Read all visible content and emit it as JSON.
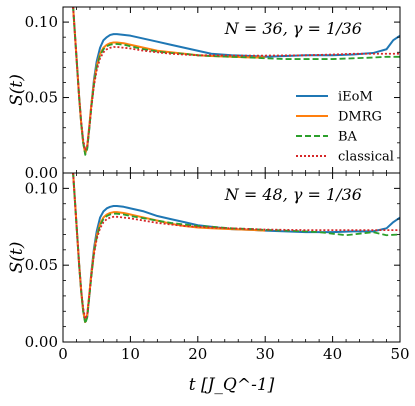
{
  "chart_data": [
    {
      "type": "line",
      "annotation": "N = 36, γ = 1/36",
      "xlabel": "",
      "ylabel": "S(t)",
      "xlim": [
        0,
        50
      ],
      "ylim": [
        0.0,
        0.11
      ],
      "x_ticks": [
        0,
        10,
        20,
        30,
        40,
        50
      ],
      "y_ticks": [
        "0.00",
        "0.05",
        "0.10"
      ],
      "y_tick_values": [
        0.0,
        0.05,
        0.1
      ],
      "legend": "center-right",
      "series": [
        {
          "name": "iEoM",
          "color": "#1f77b4",
          "style": "solid",
          "x": [
            1.5,
            1.8,
            2.1,
            2.4,
            2.7,
            3.0,
            3.3,
            3.6,
            3.9,
            4.2,
            4.6,
            5.0,
            5.5,
            6.0,
            6.5,
            7.0,
            7.5,
            8.0,
            9,
            10,
            12,
            14,
            16,
            18,
            20,
            22,
            25,
            28,
            30,
            33,
            36,
            40,
            43,
            46,
            48,
            49,
            50
          ],
          "y": [
            0.11,
            0.09,
            0.07,
            0.05,
            0.033,
            0.02,
            0.013,
            0.017,
            0.03,
            0.045,
            0.062,
            0.074,
            0.083,
            0.088,
            0.09,
            0.0915,
            0.092,
            0.092,
            0.0915,
            0.091,
            0.089,
            0.087,
            0.085,
            0.083,
            0.081,
            0.079,
            0.078,
            0.0775,
            0.077,
            0.0775,
            0.078,
            0.078,
            0.0785,
            0.0795,
            0.082,
            0.088,
            0.091
          ]
        },
        {
          "name": "DMRG",
          "color": "#ff7f0e",
          "style": "solid",
          "x": [
            1.5,
            1.8,
            2.1,
            2.4,
            2.7,
            3.0,
            3.3,
            3.6,
            3.9,
            4.2,
            4.6,
            5.0,
            5.5,
            6.0,
            6.5,
            7.0,
            7.5,
            8.0,
            9,
            10,
            12,
            14,
            16,
            18,
            20,
            22,
            25,
            28,
            30
          ],
          "y": [
            0.11,
            0.09,
            0.07,
            0.05,
            0.033,
            0.02,
            0.013,
            0.018,
            0.031,
            0.045,
            0.06,
            0.071,
            0.079,
            0.083,
            0.085,
            0.086,
            0.0865,
            0.0865,
            0.086,
            0.085,
            0.083,
            0.081,
            0.08,
            0.079,
            0.078,
            0.0775,
            0.077,
            0.0765,
            0.0765
          ]
        },
        {
          "name": "BA",
          "color": "#2ca02c",
          "style": "dashed",
          "x": [
            1.5,
            1.8,
            2.1,
            2.4,
            2.7,
            3.0,
            3.3,
            3.6,
            3.9,
            4.2,
            4.6,
            5.0,
            5.5,
            6.0,
            6.5,
            7.0,
            7.5,
            8.0,
            9,
            10,
            12,
            14,
            16,
            18,
            20,
            22,
            25,
            28,
            30,
            33,
            36,
            40,
            43,
            46,
            48,
            50
          ],
          "y": [
            0.11,
            0.09,
            0.07,
            0.05,
            0.033,
            0.02,
            0.012,
            0.016,
            0.029,
            0.043,
            0.059,
            0.07,
            0.078,
            0.082,
            0.084,
            0.085,
            0.0855,
            0.0855,
            0.085,
            0.084,
            0.082,
            0.0805,
            0.0795,
            0.079,
            0.078,
            0.0775,
            0.077,
            0.0765,
            0.076,
            0.0755,
            0.0755,
            0.0755,
            0.076,
            0.0765,
            0.077,
            0.077
          ]
        },
        {
          "name": "classical",
          "color": "#d62728",
          "style": "dotted",
          "x": [
            1.5,
            1.8,
            2.1,
            2.4,
            2.7,
            3.0,
            3.3,
            3.6,
            3.9,
            4.2,
            4.6,
            5.0,
            5.5,
            6.0,
            6.5,
            7.0,
            7.5,
            8.0,
            9,
            10,
            12,
            14,
            16,
            18,
            20,
            22,
            25,
            28,
            30,
            33,
            36,
            40,
            43,
            46,
            48,
            50
          ],
          "y": [
            0.11,
            0.09,
            0.07,
            0.05,
            0.034,
            0.022,
            0.015,
            0.018,
            0.03,
            0.043,
            0.058,
            0.068,
            0.076,
            0.08,
            0.082,
            0.083,
            0.0835,
            0.0835,
            0.083,
            0.0825,
            0.081,
            0.08,
            0.079,
            0.0785,
            0.078,
            0.078,
            0.0778,
            0.0778,
            0.0778,
            0.0779,
            0.078,
            0.0785,
            0.079,
            0.079,
            0.079,
            0.079
          ]
        }
      ]
    },
    {
      "type": "line",
      "annotation": "N = 48, γ = 1/36",
      "xlabel": "t [J_Q^-1]",
      "ylabel": "S(t)",
      "xlim": [
        0,
        50
      ],
      "ylim": [
        0.0,
        0.11
      ],
      "x_ticks": [
        0,
        10,
        20,
        30,
        40,
        50
      ],
      "x_tick_labels": [
        "0",
        "10",
        "20",
        "30",
        "40",
        "50"
      ],
      "y_ticks": [
        "0.00",
        "0.05",
        "0.10"
      ],
      "y_tick_values": [
        0.0,
        0.05,
        0.1
      ],
      "series": [
        {
          "name": "iEoM",
          "color": "#1f77b4",
          "style": "solid",
          "x": [
            1.5,
            1.8,
            2.1,
            2.4,
            2.7,
            3.0,
            3.3,
            3.6,
            3.9,
            4.2,
            4.6,
            5.0,
            5.5,
            6.0,
            6.5,
            7.0,
            7.5,
            8.0,
            9,
            10,
            12,
            14,
            16,
            18,
            20,
            22,
            25,
            28,
            30,
            33,
            36,
            40,
            43,
            46,
            48,
            49,
            50
          ],
          "y": [
            0.11,
            0.09,
            0.07,
            0.05,
            0.033,
            0.02,
            0.013,
            0.017,
            0.03,
            0.045,
            0.061,
            0.072,
            0.081,
            0.085,
            0.087,
            0.088,
            0.0885,
            0.0885,
            0.088,
            0.087,
            0.085,
            0.082,
            0.08,
            0.078,
            0.076,
            0.075,
            0.0735,
            0.073,
            0.0725,
            0.072,
            0.0715,
            0.0715,
            0.072,
            0.072,
            0.074,
            0.078,
            0.081
          ]
        },
        {
          "name": "DMRG",
          "color": "#ff7f0e",
          "style": "solid",
          "x": [
            1.5,
            1.8,
            2.1,
            2.4,
            2.7,
            3.0,
            3.3,
            3.6,
            3.9,
            4.2,
            4.6,
            5.0,
            5.5,
            6.0,
            6.5,
            7.0,
            7.5,
            8.0,
            9,
            10,
            12,
            14,
            16,
            18,
            20,
            22,
            25,
            28,
            30
          ],
          "y": [
            0.11,
            0.09,
            0.07,
            0.05,
            0.033,
            0.02,
            0.013,
            0.018,
            0.031,
            0.044,
            0.059,
            0.069,
            0.077,
            0.081,
            0.083,
            0.084,
            0.0845,
            0.0845,
            0.084,
            0.083,
            0.081,
            0.079,
            0.077,
            0.0755,
            0.0745,
            0.074,
            0.0735,
            0.073,
            0.0725
          ]
        },
        {
          "name": "BA",
          "color": "#2ca02c",
          "style": "dashed",
          "x": [
            1.5,
            1.8,
            2.1,
            2.4,
            2.7,
            3.0,
            3.3,
            3.6,
            3.9,
            4.2,
            4.6,
            5.0,
            5.5,
            6.0,
            6.5,
            7.0,
            7.5,
            8.0,
            9,
            10,
            12,
            14,
            16,
            18,
            20,
            22,
            25,
            28,
            30,
            33,
            36,
            38,
            40,
            42,
            44,
            46,
            48,
            50
          ],
          "y": [
            0.11,
            0.09,
            0.07,
            0.05,
            0.033,
            0.02,
            0.012,
            0.016,
            0.029,
            0.042,
            0.058,
            0.068,
            0.076,
            0.08,
            0.082,
            0.083,
            0.0835,
            0.0835,
            0.083,
            0.082,
            0.0805,
            0.079,
            0.0775,
            0.0765,
            0.0755,
            0.075,
            0.074,
            0.0735,
            0.073,
            0.0725,
            0.072,
            0.0715,
            0.0705,
            0.0695,
            0.0705,
            0.0715,
            0.0695,
            0.07
          ]
        },
        {
          "name": "classical",
          "color": "#d62728",
          "style": "dotted",
          "x": [
            1.5,
            1.8,
            2.1,
            2.4,
            2.7,
            3.0,
            3.3,
            3.6,
            3.9,
            4.2,
            4.6,
            5.0,
            5.5,
            6.0,
            6.5,
            7.0,
            7.5,
            8.0,
            9,
            10,
            12,
            14,
            16,
            18,
            20,
            22,
            25,
            28,
            30,
            33,
            36,
            40,
            43,
            46,
            48,
            50
          ],
          "y": [
            0.11,
            0.09,
            0.07,
            0.05,
            0.034,
            0.022,
            0.015,
            0.018,
            0.03,
            0.043,
            0.057,
            0.067,
            0.074,
            0.078,
            0.08,
            0.081,
            0.0815,
            0.0815,
            0.081,
            0.0805,
            0.079,
            0.0775,
            0.0765,
            0.0755,
            0.075,
            0.0745,
            0.074,
            0.0735,
            0.0732,
            0.073,
            0.0728,
            0.0728,
            0.0728,
            0.0728,
            0.0728,
            0.0728
          ]
        }
      ]
    }
  ]
}
